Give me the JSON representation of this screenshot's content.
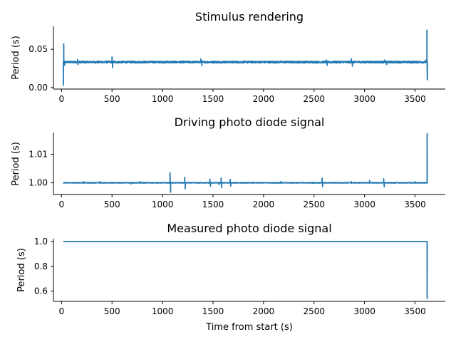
{
  "chart_data": [
    {
      "type": "line",
      "title": "Stimulus rendering",
      "xlabel": "",
      "ylabel": "Period (s)",
      "xlim": [
        -80,
        3800
      ],
      "ylim": [
        -0.002,
        0.08
      ],
      "xticks": [
        0,
        500,
        1000,
        1500,
        2000,
        2500,
        3000,
        3500
      ],
      "xtick_labels": [
        "0",
        "500",
        "1000",
        "1500",
        "2000",
        "2500",
        "3000",
        "3500"
      ],
      "yticks": [
        0.0,
        0.05
      ],
      "ytick_labels": [
        "0.00",
        "0.05"
      ],
      "grid": false,
      "series": [
        {
          "color": "#1f77b4",
          "baseline": 0.0333,
          "x_range": [
            18,
            3620
          ],
          "dense_noise": 0.0012,
          "spikes": [
            {
              "x": 18,
              "y": 0.003
            },
            {
              "x": 22,
              "y": 0.057
            },
            {
              "x": 30,
              "y": 0.029
            },
            {
              "x": 160,
              "y": 0.0365
            },
            {
              "x": 165,
              "y": 0.03
            },
            {
              "x": 500,
              "y": 0.04
            },
            {
              "x": 505,
              "y": 0.026
            },
            {
              "x": 1380,
              "y": 0.0375
            },
            {
              "x": 1390,
              "y": 0.029
            },
            {
              "x": 2620,
              "y": 0.036
            },
            {
              "x": 2630,
              "y": 0.029
            },
            {
              "x": 2870,
              "y": 0.0375
            },
            {
              "x": 2880,
              "y": 0.028
            },
            {
              "x": 3200,
              "y": 0.036
            },
            {
              "x": 3220,
              "y": 0.03
            },
            {
              "x": 3610,
              "y": 0.036
            },
            {
              "x": 3618,
              "y": 0.075
            },
            {
              "x": 3622,
              "y": 0.01
            }
          ]
        }
      ]
    },
    {
      "type": "line",
      "title": "Driving photo diode signal",
      "xlabel": "",
      "ylabel": "Period (s)",
      "xlim": [
        -80,
        3800
      ],
      "ylim": [
        0.9959,
        1.0176
      ],
      "xticks": [
        0,
        500,
        1000,
        1500,
        2000,
        2500,
        3000,
        3500
      ],
      "xtick_labels": [
        "0",
        "500",
        "1000",
        "1500",
        "2000",
        "2500",
        "3000",
        "3500"
      ],
      "yticks": [
        1.0,
        1.01
      ],
      "ytick_labels": [
        "1.00",
        "1.01"
      ],
      "grid": false,
      "series": [
        {
          "color": "#1f77b4",
          "baseline": 1.0,
          "x_range": [
            18,
            3620
          ],
          "dense_noise": 0.0001,
          "spikes": [
            {
              "x": 220,
              "y": 1.0004
            },
            {
              "x": 380,
              "y": 1.0004
            },
            {
              "x": 690,
              "y": 0.9996
            },
            {
              "x": 780,
              "y": 1.0004
            },
            {
              "x": 1075,
              "y": 1.0035
            },
            {
              "x": 1080,
              "y": 0.9967
            },
            {
              "x": 1220,
              "y": 1.0019
            },
            {
              "x": 1225,
              "y": 0.9979
            },
            {
              "x": 1470,
              "y": 1.0013
            },
            {
              "x": 1475,
              "y": 0.9988
            },
            {
              "x": 1580,
              "y": 1.0017
            },
            {
              "x": 1585,
              "y": 0.9983
            },
            {
              "x": 1560,
              "y": 0.9993
            },
            {
              "x": 1670,
              "y": 1.0012
            },
            {
              "x": 1675,
              "y": 0.9989
            },
            {
              "x": 2170,
              "y": 1.0004
            },
            {
              "x": 2580,
              "y": 1.0016
            },
            {
              "x": 2585,
              "y": 0.9987
            },
            {
              "x": 2870,
              "y": 1.0004
            },
            {
              "x": 3050,
              "y": 1.0008
            },
            {
              "x": 3190,
              "y": 1.0014
            },
            {
              "x": 3195,
              "y": 0.9986
            },
            {
              "x": 3500,
              "y": 1.0004
            },
            {
              "x": 3620,
              "y": 1.0172
            }
          ]
        }
      ]
    },
    {
      "type": "line",
      "title": "Measured photo diode signal",
      "xlabel": "Time from start (s)",
      "ylabel": "Period (s)",
      "xlim": [
        -80,
        3800
      ],
      "ylim": [
        0.516,
        1.024
      ],
      "xticks": [
        0,
        500,
        1000,
        1500,
        2000,
        2500,
        3000,
        3500
      ],
      "xtick_labels": [
        "0",
        "500",
        "1000",
        "1500",
        "2000",
        "2500",
        "3000",
        "3500"
      ],
      "yticks": [
        0.6,
        0.8,
        1.0
      ],
      "ytick_labels": [
        "0.6",
        "0.8",
        "1.0"
      ],
      "grid": false,
      "series": [
        {
          "color": "#1f77b4",
          "baseline": 1.0,
          "x_range": [
            18,
            3620
          ],
          "dense_noise": 0.0,
          "spikes": [
            {
              "x": 3620,
              "y": 0.54
            }
          ]
        }
      ]
    }
  ]
}
